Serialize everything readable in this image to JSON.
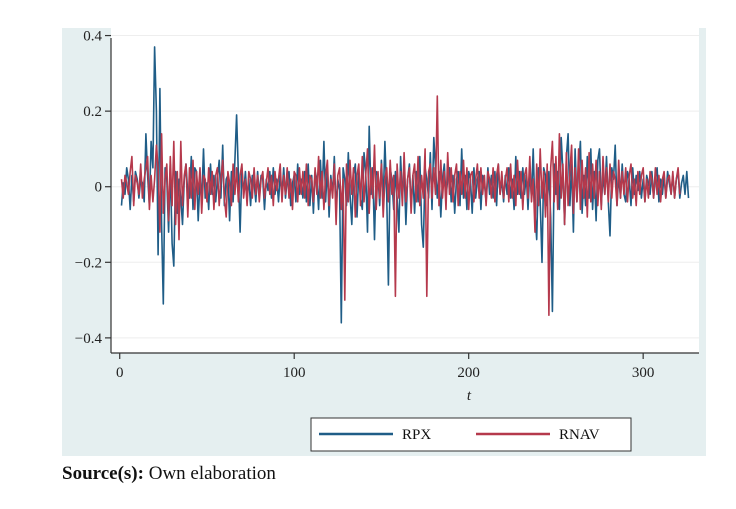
{
  "source": {
    "label": "Source(s):",
    "text": " Own elaboration"
  },
  "colors": {
    "background": "#e5eff0",
    "RPX": "#1f5d87",
    "RNAV": "#b5394c",
    "grid": "#ffffff",
    "axis": "#333333"
  },
  "chart_data": {
    "type": "line",
    "title": "",
    "xlabel": "t",
    "ylabel": "",
    "xlim": [
      -5,
      332
    ],
    "ylim": [
      -0.44,
      0.42
    ],
    "xticks": [
      0,
      100,
      200,
      300
    ],
    "xtick_labels": [
      "0",
      "100",
      "200",
      "300"
    ],
    "yticks": [
      0.4,
      0.2,
      0,
      -0.2,
      -0.4
    ],
    "ytick_labels": [
      "0.4",
      "0.2",
      "0",
      "−0.2",
      "−0.4"
    ],
    "grid": "horizontal",
    "legend_position": "bottom",
    "series": [
      {
        "name": "RPX",
        "color": "#1f5d87",
        "x_start": 1,
        "x_step": 1,
        "values": [
          -0.05,
          0.01,
          -0.02,
          0.05,
          0.02,
          -0.06,
          0.03,
          -0.04,
          0.04,
          0.02,
          -0.03,
          0.02,
          0.01,
          -0.04,
          0.14,
          0.03,
          -0.05,
          0.12,
          0.05,
          0.37,
          0.2,
          -0.18,
          0.26,
          -0.1,
          -0.31,
          0.05,
          0.02,
          -0.12,
          0.06,
          -0.15,
          -0.21,
          0.04,
          -0.07,
          0.02,
          -0.03,
          -0.1,
          0.02,
          0.06,
          -0.02,
          -0.03,
          0.08,
          -0.06,
          0.05,
          0.04,
          -0.09,
          0.02,
          -0.04,
          0.1,
          -0.03,
          0.01,
          -0.06,
          0.06,
          -0.02,
          0.03,
          -0.04,
          0.02,
          0.07,
          -0.03,
          0.11,
          -0.05,
          0.02,
          0.03,
          -0.09,
          0.04,
          -0.04,
          0.07,
          0.19,
          0.03,
          -0.12,
          0.05,
          -0.02,
          0.04,
          -0.03,
          0.02,
          -0.05,
          0.03,
          0.01,
          -0.04,
          0.04,
          -0.02,
          0.03,
          0.02,
          -0.06,
          0.02,
          -0.01,
          0.04,
          -0.03,
          0.05,
          -0.02,
          0.02,
          -0.04,
          0.03,
          -0.02,
          0.05,
          -0.03,
          0.02,
          0.04,
          -0.05,
          0.01,
          0.03,
          -0.04,
          0.06,
          -0.02,
          0.02,
          -0.03,
          0.04,
          -0.04,
          0.06,
          -0.05,
          0.03,
          -0.07,
          0.04,
          0.02,
          -0.06,
          0.07,
          -0.03,
          0.12,
          -0.04,
          0.05,
          -0.08,
          0.03,
          -0.02,
          0.08,
          -0.06,
          0.02,
          -0.01,
          -0.36,
          0.05,
          0.02,
          -0.05,
          0.09,
          -0.02,
          -0.1,
          0.03,
          0.06,
          -0.08,
          0.04,
          -0.03,
          -0.06,
          0.09,
          0.04,
          -0.12,
          0.16,
          -0.02,
          0.05,
          -0.14,
          0.04,
          0.03,
          -0.05,
          0.07,
          -0.04,
          0.12,
          -0.02,
          -0.26,
          0.05,
          0.02,
          -0.06,
          0.04,
          -0.03,
          -0.12,
          0.08,
          -0.03,
          0.05,
          -0.1,
          0.02,
          0.06,
          -0.05,
          0.03,
          -0.07,
          0.04,
          -0.04,
          0.08,
          -0.1,
          -0.16,
          0.05,
          0.02,
          -0.03,
          0.09,
          -0.06,
          0.13,
          0.05,
          -0.03,
          0.04,
          -0.08,
          0.02,
          0.06,
          -0.03,
          0.02,
          0.05,
          -0.04,
          0.03,
          -0.07,
          0.02,
          0.04,
          -0.05,
          0.1,
          -0.03,
          0.03,
          -0.06,
          0.04,
          0.02,
          -0.07,
          0.05,
          -0.03,
          0.02,
          0.04,
          -0.06,
          0.03,
          0.01,
          -0.04,
          0.05,
          -0.02,
          0.03,
          -0.03,
          0.04,
          -0.05,
          0.06,
          -0.02,
          0.02,
          -0.04,
          0.03,
          -0.02,
          0.05,
          -0.03,
          0.02,
          -0.06,
          0.08,
          -0.02,
          0.04,
          -0.03,
          0.05,
          -0.02,
          0.03,
          -0.06,
          0.04,
          -0.03,
          0.1,
          -0.07,
          -0.14,
          0.05,
          -0.04,
          -0.2,
          0.05,
          0.03,
          -0.05,
          0.04,
          -0.08,
          -0.33,
          0.06,
          -0.02,
          0.04,
          -0.06,
          0.13,
          0.04,
          -0.1,
          0.08,
          0.14,
          -0.05,
          0.06,
          -0.12,
          0.1,
          -0.04,
          0.05,
          0.12,
          -0.07,
          0.03,
          -0.05,
          0.08,
          -0.03,
          0.1,
          -0.06,
          0.04,
          -0.09,
          0.07,
          0.1,
          -0.05,
          0.03,
          -0.02,
          0.08,
          -0.04,
          -0.13,
          0.05,
          0.02,
          0.11,
          -0.05,
          0.03,
          -0.03,
          0.06,
          -0.02,
          -0.04,
          0.04,
          0.02,
          -0.05,
          0.05,
          -0.02,
          0.03,
          -0.01,
          0.04,
          -0.03,
          0.02,
          -0.04,
          0.03,
          0.01,
          -0.02,
          0.04,
          -0.03,
          0.02,
          0.05,
          -0.04,
          0.02,
          -0.02,
          0.03,
          -0.03,
          0.04,
          0.01,
          -0.02,
          0.03,
          -0.03,
          0.02,
          0.04,
          -0.03,
          0.01,
          0.03,
          -0.02,
          0.04,
          -0.03
        ]
      },
      {
        "name": "RNAV",
        "color": "#b5394c",
        "x_start": 1,
        "x_step": 1,
        "values": [
          0.02,
          -0.03,
          0.03,
          0.01,
          -0.02,
          0.04,
          0.08,
          -0.05,
          0.03,
          0.01,
          -0.02,
          0.06,
          -0.03,
          0.02,
          0.05,
          0.08,
          -0.06,
          0.03,
          -0.04,
          0.02,
          0.11,
          0.05,
          -0.12,
          0.14,
          -0.07,
          0.02,
          0.06,
          -0.09,
          0.08,
          -0.05,
          0.12,
          -0.1,
          0.04,
          -0.14,
          0.12,
          -0.05,
          0.03,
          0.06,
          -0.08,
          0.05,
          -0.03,
          0.07,
          -0.06,
          0.04,
          -0.02,
          0.05,
          -0.07,
          0.03,
          0.02,
          -0.04,
          0.05,
          -0.02,
          0.04,
          -0.06,
          0.03,
          0.05,
          -0.05,
          0.02,
          0.07,
          -0.03,
          -0.08,
          0.04,
          0.01,
          -0.05,
          0.06,
          -0.02,
          0.05,
          -0.04,
          0.03,
          0.06,
          -0.03,
          0.02,
          -0.05,
          0.04,
          0.02,
          -0.03,
          0.05,
          -0.02,
          0.03,
          -0.04,
          0.02,
          0.04,
          -0.03,
          0.01,
          0.05,
          -0.02,
          0.03,
          -0.05,
          0.04,
          -0.01,
          0.02,
          0.06,
          -0.04,
          0.03,
          -0.02,
          0.05,
          -0.03,
          0.02,
          -0.06,
          0.04,
          0.03,
          -0.04,
          0.05,
          -0.02,
          0.04,
          -0.03,
          0.06,
          -0.05,
          0.03,
          0.02,
          -0.04,
          0.05,
          -0.02,
          0.08,
          -0.03,
          0.04,
          -0.06,
          0.03,
          0.07,
          -0.05,
          0.02,
          -0.03,
          0.06,
          -0.1,
          0.03,
          0.05,
          -0.06,
          0.02,
          -0.3,
          0.06,
          -0.04,
          0.07,
          -0.02,
          0.05,
          -0.08,
          0.03,
          0.06,
          -0.05,
          0.08,
          -0.04,
          0.03,
          0.1,
          -0.07,
          0.05,
          -0.03,
          0.11,
          -0.06,
          0.04,
          -0.03,
          0.06,
          -0.08,
          0.02,
          0.05,
          -0.04,
          0.07,
          -0.02,
          0.03,
          -0.29,
          0.06,
          -0.03,
          0.04,
          -0.05,
          0.09,
          -0.04,
          0.02,
          0.05,
          -0.07,
          0.03,
          0.06,
          -0.04,
          0.08,
          -0.05,
          0.03,
          -0.03,
          0.1,
          -0.29,
          0.04,
          0.06,
          -0.03,
          0.05,
          -0.02,
          0.24,
          -0.05,
          0.07,
          -0.03,
          0.04,
          -0.06,
          0.09,
          -0.02,
          0.05,
          -0.04,
          0.03,
          0.06,
          -0.05,
          0.04,
          -0.02,
          0.07,
          -0.03,
          0.05,
          -0.06,
          0.03,
          0.04,
          -0.04,
          0.02,
          0.06,
          -0.03,
          0.05,
          -0.02,
          0.03,
          -0.05,
          0.04,
          0.02,
          -0.03,
          0.05,
          -0.04,
          0.03,
          0.06,
          -0.02,
          0.04,
          -0.03,
          0.02,
          0.05,
          -0.04,
          0.06,
          -0.03,
          0.03,
          -0.05,
          0.07,
          -0.02,
          0.04,
          -0.06,
          0.03,
          0.05,
          -0.03,
          0.08,
          -0.04,
          0.02,
          -0.12,
          0.06,
          -0.05,
          0.1,
          -0.03,
          0.04,
          -0.08,
          0.06,
          -0.34,
          0.05,
          0.12,
          -0.04,
          0.08,
          -0.06,
          0.14,
          -0.03,
          0.06,
          -0.1,
          0.09,
          -0.05,
          0.04,
          0.11,
          -0.07,
          0.05,
          -0.04,
          0.1,
          -0.06,
          0.07,
          -0.03,
          0.05,
          -0.08,
          0.09,
          -0.04,
          0.06,
          -0.03,
          0.07,
          -0.05,
          0.04,
          -0.06,
          0.08,
          -0.02,
          0.05,
          -0.04,
          0.06,
          -0.03,
          0.04,
          0.02,
          -0.05,
          0.07,
          -0.03,
          0.04,
          -0.02,
          0.05,
          -0.04,
          0.03,
          0.06,
          -0.03,
          0.02,
          -0.05,
          0.04,
          -0.02,
          0.03,
          0.05,
          -0.04,
          0.02,
          -0.03,
          0.04,
          0.02,
          -0.03,
          0.05,
          -0.02,
          0.03,
          -0.04,
          0.02,
          0.04,
          -0.03,
          0.02,
          0.03,
          -0.02,
          0.04,
          -0.03,
          0.02,
          0.05,
          -0.02
        ]
      }
    ]
  }
}
